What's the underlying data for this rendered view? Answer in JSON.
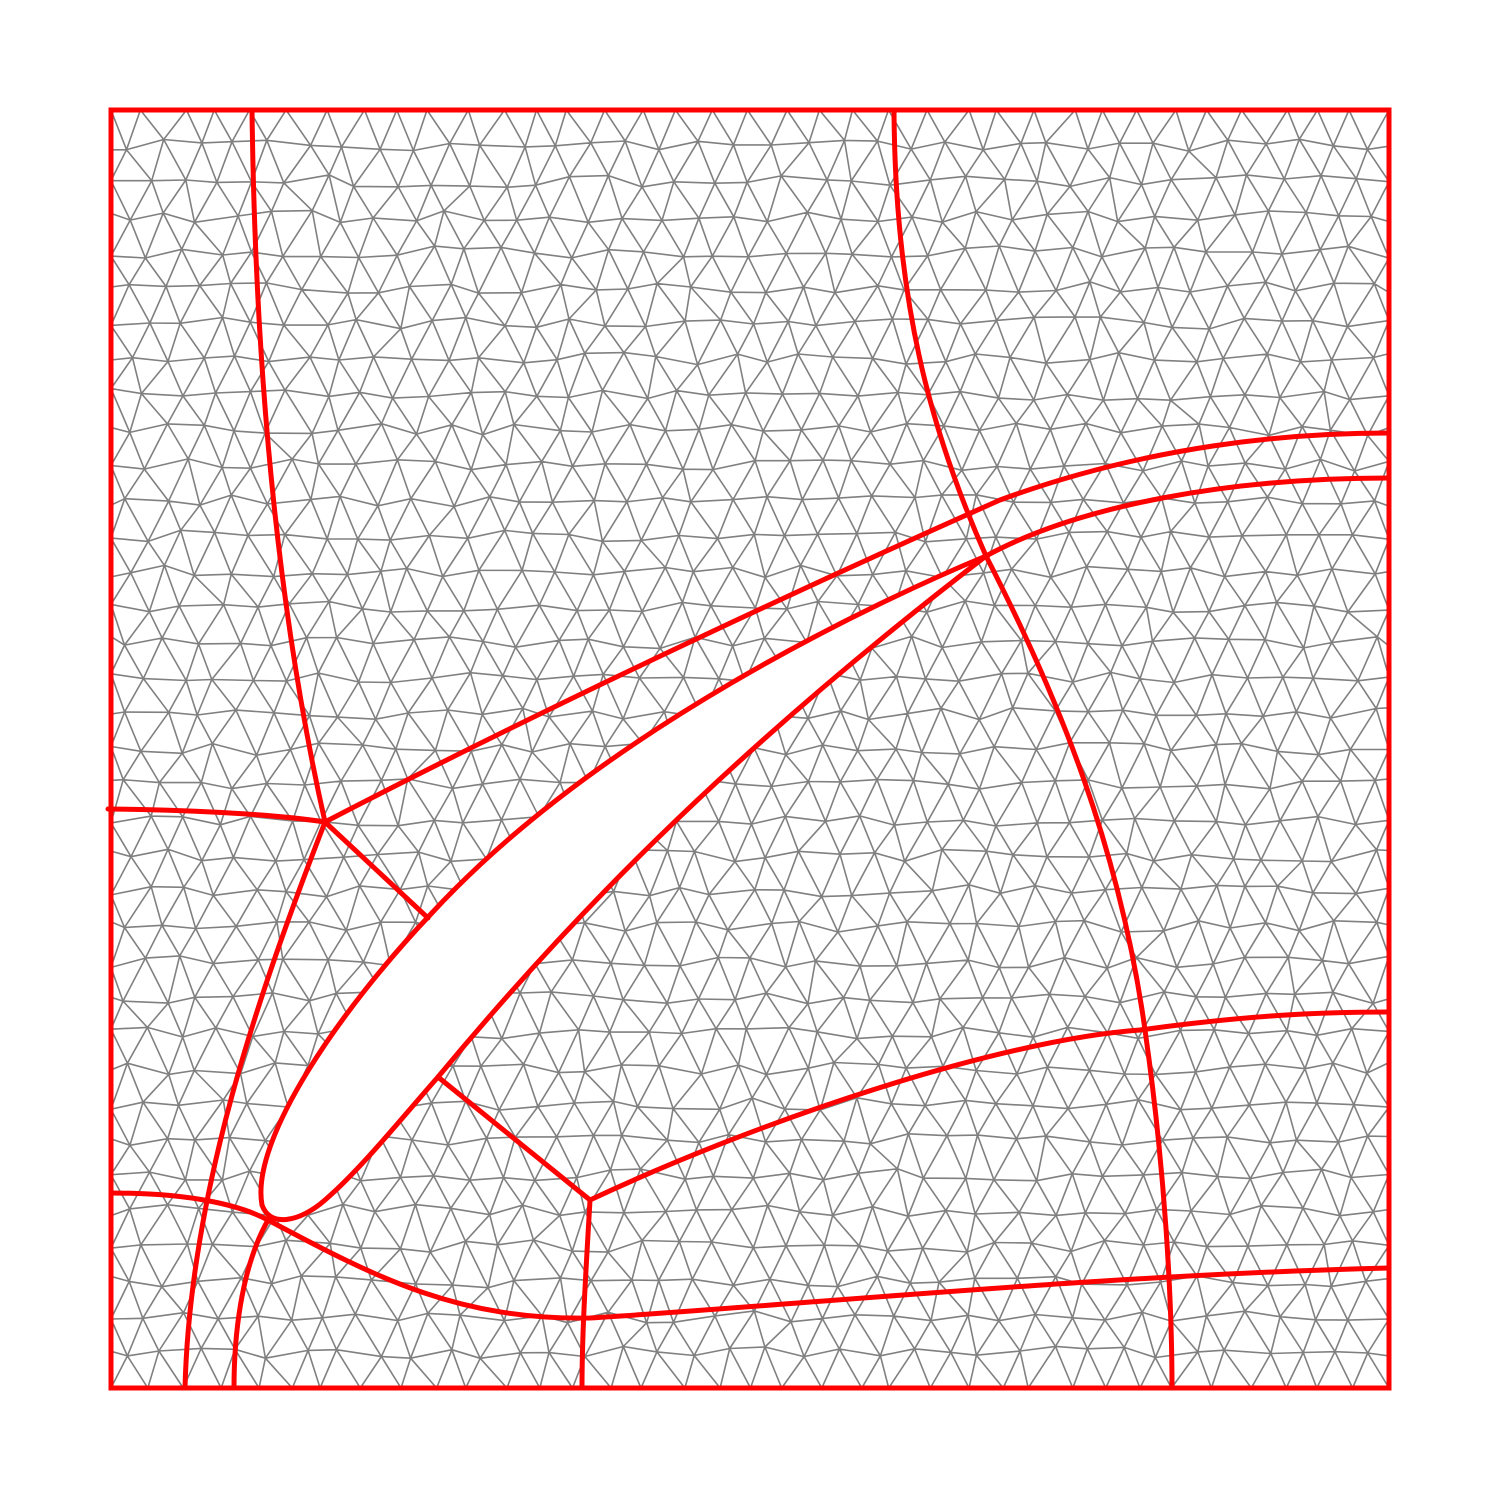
{
  "figure": {
    "description_visible_text": "",
    "colors": {
      "background": "#ffffff",
      "mesh_edges": "#808080",
      "partition_lines": "#ff0000",
      "airfoil_fill": "#ffffff"
    },
    "mesh": {
      "element_type": "triangle",
      "approx_rows": 36,
      "approx_cols": 36
    },
    "partition": {
      "region_count_approx": 14,
      "has_airfoil_hole": true
    }
  }
}
